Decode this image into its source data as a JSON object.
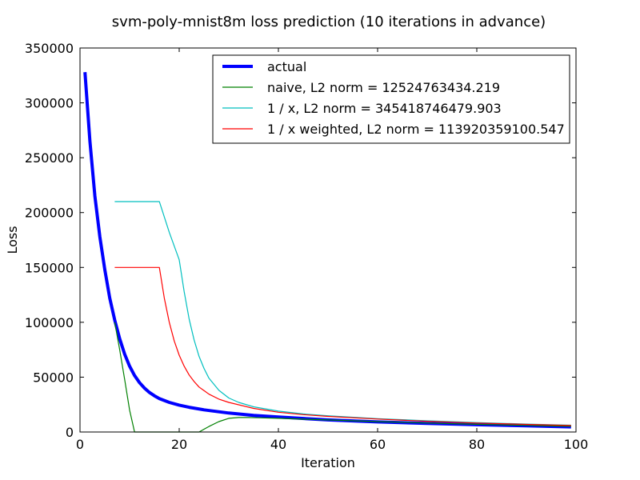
{
  "chart_data": {
    "type": "line",
    "title": "svm-poly-mnist8m loss prediction (10 iterations in advance)",
    "xlabel": "Iteration",
    "ylabel": "Loss",
    "xlim": [
      0,
      100
    ],
    "ylim": [
      0,
      350000
    ],
    "xticks": [
      0,
      20,
      40,
      60,
      80,
      100
    ],
    "xtick_labels": [
      "0",
      "20",
      "40",
      "60",
      "80",
      "100"
    ],
    "yticks": [
      0,
      50000,
      100000,
      150000,
      200000,
      250000,
      300000,
      350000
    ],
    "ytick_labels": [
      "0",
      "50000",
      "100000",
      "150000",
      "200000",
      "250000",
      "300000",
      "350000"
    ],
    "grid": false,
    "legend_position": "top-right",
    "series": [
      {
        "name": "actual",
        "color": "#0000ff",
        "linewidth": 4,
        "x": [
          1,
          2,
          3,
          4,
          5,
          6,
          7,
          8,
          9,
          10,
          11,
          12,
          13,
          14,
          15,
          16,
          18,
          20,
          22,
          25,
          30,
          35,
          40,
          50,
          60,
          70,
          80,
          90,
          99
        ],
        "y": [
          328000,
          265000,
          215000,
          178000,
          148000,
          122000,
          102000,
          85000,
          71000,
          60000,
          51500,
          45000,
          40000,
          36000,
          33000,
          30500,
          27000,
          24500,
          22500,
          20200,
          17300,
          15200,
          13600,
          11000,
          9200,
          7800,
          6600,
          5600,
          4700
        ]
      },
      {
        "name": "naive, L2 norm = 12524763434.219",
        "color": "#008000",
        "linewidth": 1.2,
        "x": [
          7,
          8,
          9,
          10,
          11,
          24,
          26,
          28,
          30,
          32,
          34,
          36,
          40,
          50,
          60,
          70,
          80,
          90,
          99
        ],
        "y": [
          100000,
          75000,
          48000,
          20000,
          0,
          0,
          5000,
          9500,
          12500,
          13200,
          13200,
          13000,
          12500,
          11000,
          9500,
          8200,
          7000,
          6000,
          5200
        ]
      },
      {
        "name": "1 / x, L2 norm = 345418746479.903",
        "color": "#00bfbf",
        "linewidth": 1.2,
        "x": [
          7,
          10,
          12,
          14,
          16,
          18,
          20,
          21,
          22,
          23,
          24,
          25,
          26,
          28,
          30,
          32,
          35,
          40,
          45,
          50,
          60,
          70,
          80,
          90,
          99
        ],
        "y": [
          210000,
          210000,
          210000,
          210000,
          210000,
          182000,
          157000,
          128000,
          103000,
          84000,
          69000,
          58000,
          49000,
          38000,
          31000,
          27000,
          23000,
          19000,
          16500,
          14800,
          12200,
          10200,
          8600,
          7200,
          6200
        ]
      },
      {
        "name": "1 / x weighted, L2 norm = 113920359100.547",
        "color": "#ff0000",
        "linewidth": 1.2,
        "x": [
          7,
          10,
          12,
          14,
          16,
          17,
          18,
          19,
          20,
          21,
          22,
          23,
          24,
          26,
          28,
          30,
          35,
          40,
          45,
          50,
          60,
          70,
          80,
          90,
          99
        ],
        "y": [
          150000,
          150000,
          150000,
          150000,
          150000,
          122000,
          100000,
          83000,
          70000,
          60000,
          52000,
          46000,
          41000,
          34500,
          30000,
          27000,
          21500,
          18000,
          15800,
          14200,
          11800,
          9800,
          8200,
          6900,
          5900
        ]
      }
    ]
  }
}
